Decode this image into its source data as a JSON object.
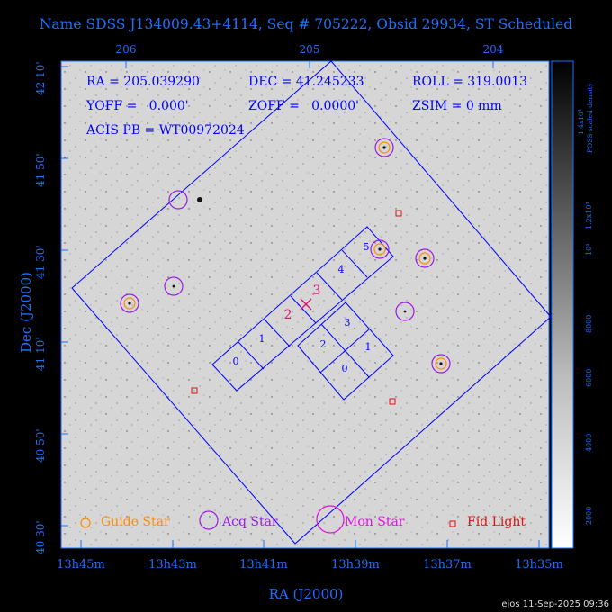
{
  "title": "Name SDSS J134009.43+4114, Seq # 705222, Obsid 29934, ST Scheduled",
  "info": {
    "ra": "RA = 205.039290",
    "dec": "DEC = 41.245233",
    "roll": "ROLL = 319.0013",
    "yoff": "YOFF =   0.000'",
    "zoff": "ZOFF =   0.0000'",
    "zsim": "ZSIM = 0 mm",
    "acis_pb": "ACIS PB = WT00972024"
  },
  "top_ticks": [
    "206",
    "205",
    "204"
  ],
  "bottom_ticks": [
    "13h45m",
    "13h43m",
    "13h41m",
    "13h39m",
    "13h37m",
    "13h35m"
  ],
  "left_ticks": [
    "42 10'",
    "41 50'",
    "41 30'",
    "41 10'",
    "40 50'",
    "40 30'"
  ],
  "x_axis_label": "RA (J2000)",
  "y_axis_label": "Dec (J2000)",
  "colorbar": {
    "title_line1": "POSS scaled density",
    "title_line2": "1.4x10⁴",
    "ticks": [
      "1.2x10⁴",
      "10⁴",
      "8000",
      "6000",
      "4000",
      "2000"
    ]
  },
  "chips": {
    "acis_s": [
      "0",
      "1",
      "2",
      "3",
      "4",
      "5"
    ],
    "acis_i": [
      "0",
      "1",
      "2",
      "3"
    ]
  },
  "aimpoint_labels": [
    "2",
    "3"
  ],
  "legend": {
    "guide": "Guide Star",
    "acq": "Acq Star",
    "mon": "Mon Star",
    "fid": "Fid Light"
  },
  "footer": "ejos 11-Sep-2025 09:36",
  "colors": {
    "text": "#1e6fff",
    "frame": "#0000ff",
    "guide": "#ff8c00",
    "acq": "#9a1ae6",
    "mon": "#e010e0",
    "fid": "#e01010",
    "aimpoint": "#e0106e"
  }
}
